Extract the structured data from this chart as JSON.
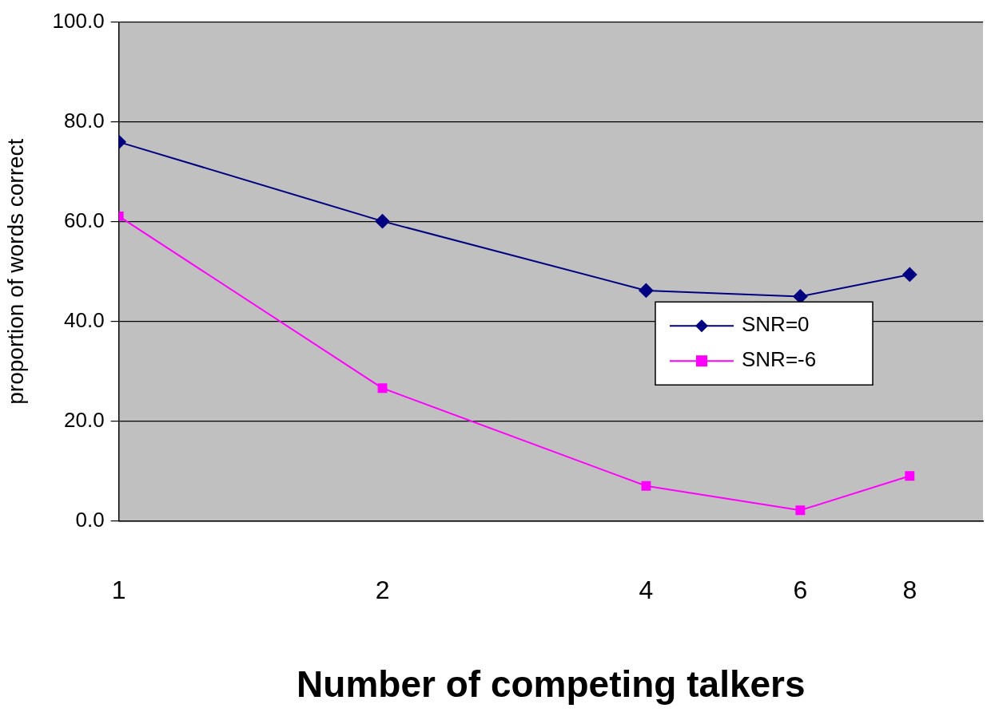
{
  "chart_data": {
    "type": "line",
    "xlabel": "Number of competing talkers",
    "ylabel": "proportion of words correct",
    "x": [
      1,
      2,
      4,
      6,
      8
    ],
    "series": [
      {
        "name": "SNR=0",
        "color": "#000080",
        "values": [
          76.0,
          60.1,
          46.2,
          45.0,
          49.4
        ],
        "marker": "diamond"
      },
      {
        "name": "SNR=-6",
        "color": "#ff00ff",
        "values": [
          61.1,
          26.6,
          7.0,
          2.1,
          9.0
        ],
        "marker": "square"
      }
    ],
    "log": "x",
    "xlim": [
      1,
      9.7
    ],
    "xticks": [
      1,
      2,
      4,
      6,
      8
    ],
    "ylim": [
      0,
      100
    ],
    "yticks": [
      {
        "value": 0,
        "label": "0.0"
      },
      {
        "value": 20,
        "label": "20.0"
      },
      {
        "value": 40,
        "label": "40.0"
      },
      {
        "value": 60,
        "label": "60.0"
      },
      {
        "value": 80,
        "label": "80.0"
      },
      {
        "value": 100,
        "label": "100.0"
      }
    ],
    "grid": "y",
    "legend": "right",
    "line_style": "solid"
  }
}
